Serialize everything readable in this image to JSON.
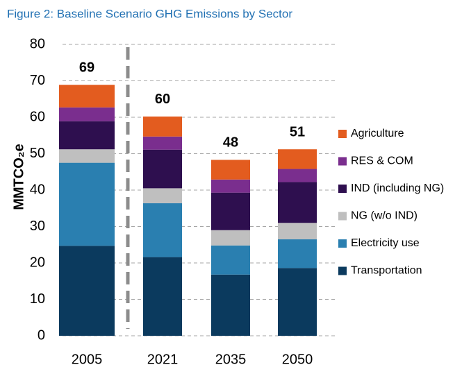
{
  "chart_data": {
    "type": "stacked-bar",
    "title": "Figure 2: Baseline Scenario GHG Emissions by Sector",
    "y_label": "MMTCO₂e",
    "categories": [
      "2005",
      "2021",
      "2035",
      "2050"
    ],
    "series": [
      {
        "name": "Transportation",
        "color": "#0b3a5e",
        "values": [
          24.7,
          21.6,
          16.8,
          18.6
        ]
      },
      {
        "name": "Electricity use",
        "color": "#2a7fb0",
        "values": [
          22.8,
          14.8,
          8.0,
          7.9
        ]
      },
      {
        "name": "NG (w/o IND)",
        "color": "#bfbfbf",
        "values": [
          3.7,
          4.1,
          4.2,
          4.5
        ]
      },
      {
        "name": "IND (including NG)",
        "color": "#2e0f4f",
        "values": [
          7.7,
          10.6,
          10.3,
          11.2
        ]
      },
      {
        "name": "RES & COM",
        "color": "#7a2e8e",
        "values": [
          3.8,
          3.6,
          3.6,
          3.6
        ]
      },
      {
        "name": "Agriculture",
        "color": "#e35c1f",
        "values": [
          6.2,
          5.5,
          5.4,
          5.4
        ]
      }
    ],
    "totals": [
      69,
      60,
      48,
      51
    ],
    "ylim": [
      0,
      80
    ],
    "yticks": [
      0,
      10,
      20,
      30,
      40,
      50,
      60,
      70,
      80
    ],
    "grid": true,
    "legend": "right"
  }
}
